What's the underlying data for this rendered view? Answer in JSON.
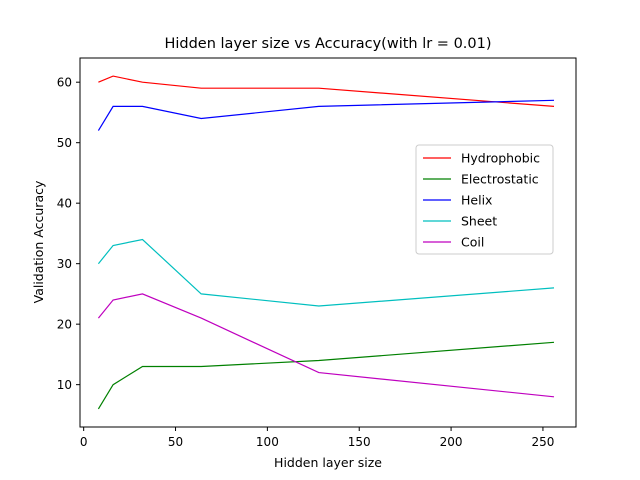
{
  "chart_data": {
    "type": "line",
    "title": "Hidden layer size vs Accuracy(with lr = 0.01)",
    "xlabel": "Hidden layer size",
    "ylabel": "Validation Accuracy",
    "xlim": [
      -2,
      268
    ],
    "ylim": [
      3,
      64
    ],
    "xticks": [
      0,
      50,
      100,
      150,
      200,
      250
    ],
    "yticks": [
      10,
      20,
      30,
      40,
      50,
      60
    ],
    "x": [
      8,
      16,
      32,
      64,
      128,
      256
    ],
    "grid": false,
    "legend_position": "center-right",
    "series": [
      {
        "name": "Hydrophobic",
        "color": "#ff0000",
        "values": [
          60,
          61,
          60,
          59,
          59,
          56
        ]
      },
      {
        "name": "Electrostatic",
        "color": "#008000",
        "values": [
          6,
          10,
          13,
          13,
          14,
          17
        ]
      },
      {
        "name": "Helix",
        "color": "#0000ff",
        "values": [
          52,
          56,
          56,
          54,
          56,
          57
        ]
      },
      {
        "name": "Sheet",
        "color": "#00bfbf",
        "values": [
          30,
          33,
          34,
          25,
          23,
          26
        ]
      },
      {
        "name": "Coil",
        "color": "#bf00bf",
        "values": [
          21,
          24,
          25,
          21,
          12,
          8
        ]
      }
    ]
  }
}
